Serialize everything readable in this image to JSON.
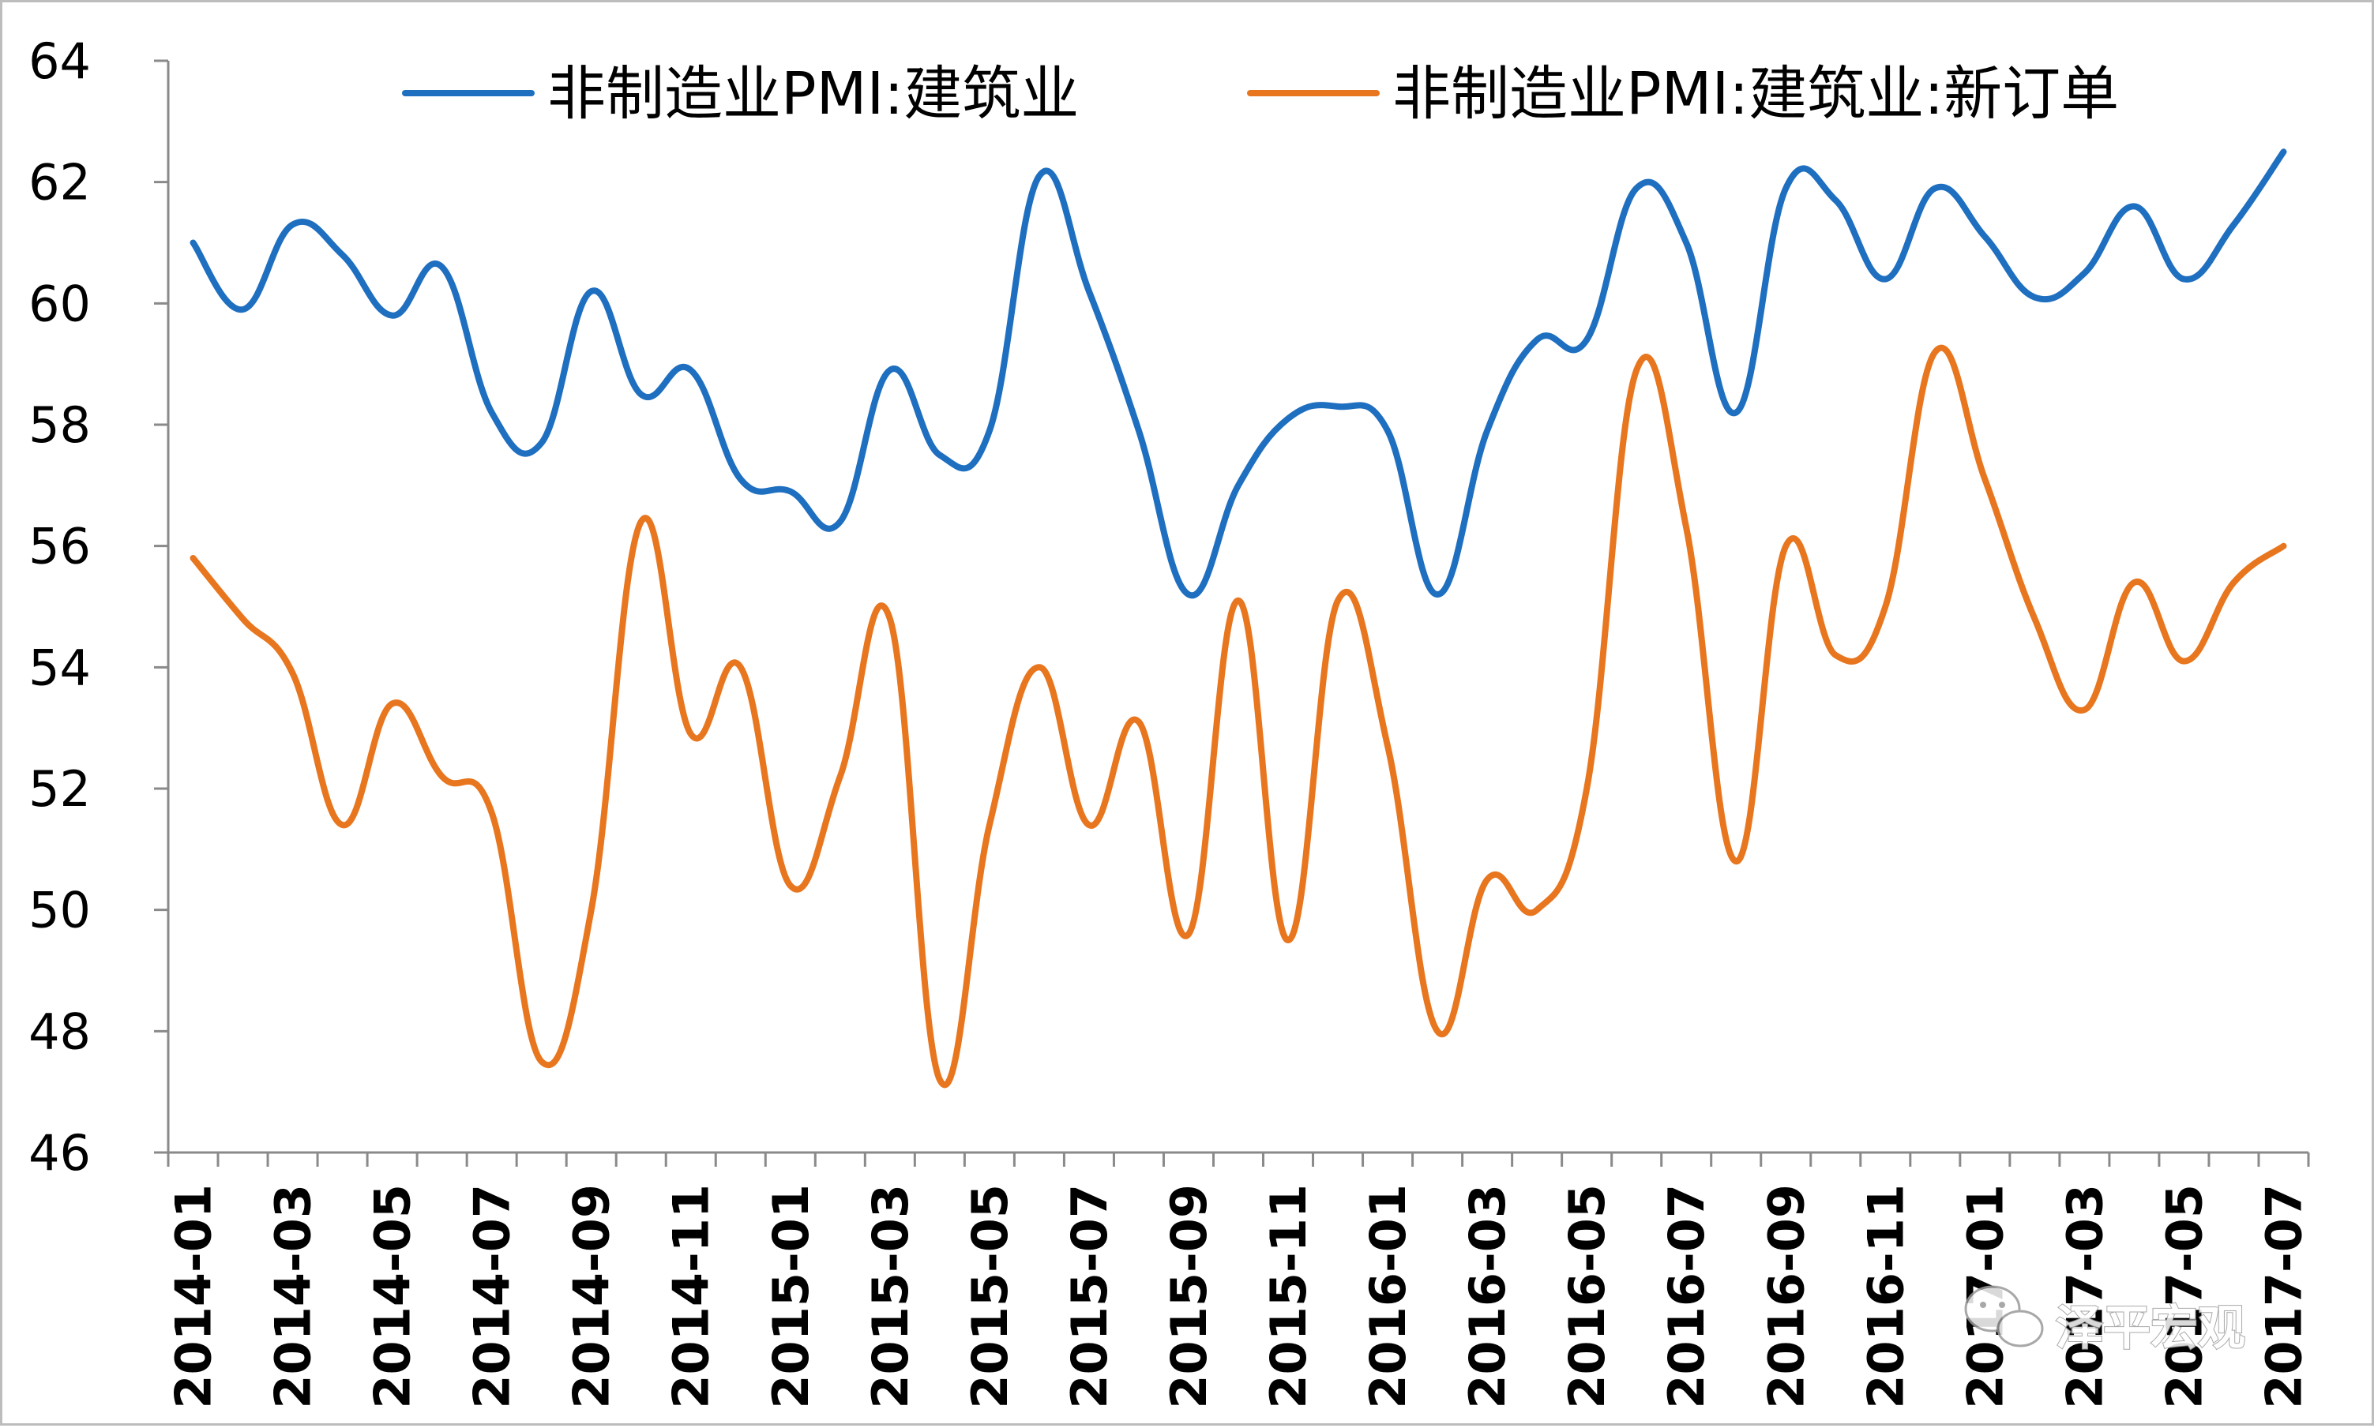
{
  "chart_data": {
    "type": "line",
    "title": "",
    "xlabel": "",
    "ylabel": "",
    "ylim": [
      46,
      64
    ],
    "yticks": [
      46,
      48,
      50,
      52,
      54,
      56,
      58,
      60,
      62,
      64
    ],
    "xtick_labels": [
      "2014-01",
      "2014-03",
      "2014-05",
      "2014-07",
      "2014-09",
      "2014-11",
      "2015-01",
      "2015-03",
      "2015-05",
      "2015-07",
      "2015-09",
      "2015-11",
      "2016-01",
      "2016-03",
      "2016-05",
      "2016-07",
      "2016-09",
      "2016-11",
      "2017-01",
      "2017-03",
      "2017-05",
      "2017-07"
    ],
    "legend_position": "top",
    "grid": false,
    "x": [
      "2014-01",
      "2014-02",
      "2014-03",
      "2014-04",
      "2014-05",
      "2014-06",
      "2014-07",
      "2014-08",
      "2014-09",
      "2014-10",
      "2014-11",
      "2014-12",
      "2015-01",
      "2015-02",
      "2015-03",
      "2015-04",
      "2015-05",
      "2015-06",
      "2015-07",
      "2015-08",
      "2015-09",
      "2015-10",
      "2015-11",
      "2015-12",
      "2016-01",
      "2016-02",
      "2016-03",
      "2016-04",
      "2016-05",
      "2016-06",
      "2016-07",
      "2016-08",
      "2016-09",
      "2016-10",
      "2016-11",
      "2016-12",
      "2017-01",
      "2017-02",
      "2017-03",
      "2017-04",
      "2017-05",
      "2017-06",
      "2017-07"
    ],
    "series": [
      {
        "name": "非制造业PMI:建筑业",
        "color": "#1f6fc0",
        "values": [
          61.0,
          59.9,
          61.3,
          60.8,
          59.8,
          60.6,
          58.2,
          57.7,
          60.2,
          58.5,
          58.9,
          57.1,
          56.9,
          56.4,
          58.9,
          57.5,
          57.9,
          62.1,
          60.2,
          57.9,
          55.2,
          57.0,
          58.1,
          58.3,
          57.9,
          55.2,
          57.9,
          59.4,
          59.4,
          61.9,
          61.0,
          58.2,
          61.9,
          61.7,
          60.4,
          61.9,
          61.1,
          60.1,
          60.5,
          61.6,
          60.4,
          61.3,
          62.5
        ]
      },
      {
        "name": "非制造业PMI:建筑业:新订单",
        "color": "#e8761f",
        "values": [
          55.8,
          54.8,
          53.9,
          51.4,
          53.4,
          52.2,
          51.6,
          47.5,
          50.0,
          56.4,
          52.9,
          54.0,
          50.4,
          52.2,
          54.8,
          47.2,
          51.4,
          54.0,
          51.4,
          53.1,
          49.6,
          55.1,
          49.5,
          55.1,
          52.7,
          48.0,
          50.5,
          50.0,
          52.0,
          58.9,
          56.3,
          50.8,
          56.0,
          54.2,
          55.0,
          59.2,
          57.1,
          54.8,
          53.3,
          55.4,
          54.1,
          55.4,
          56.0
        ]
      }
    ]
  },
  "legend": {
    "items": [
      {
        "label": "非制造业PMI:建筑业",
        "color": "#1f6fc0"
      },
      {
        "label": "非制造业PMI:建筑业:新订单",
        "color": "#e8761f"
      }
    ]
  },
  "watermark": {
    "text": "泽平宏观",
    "icon": "wechat-icon"
  }
}
